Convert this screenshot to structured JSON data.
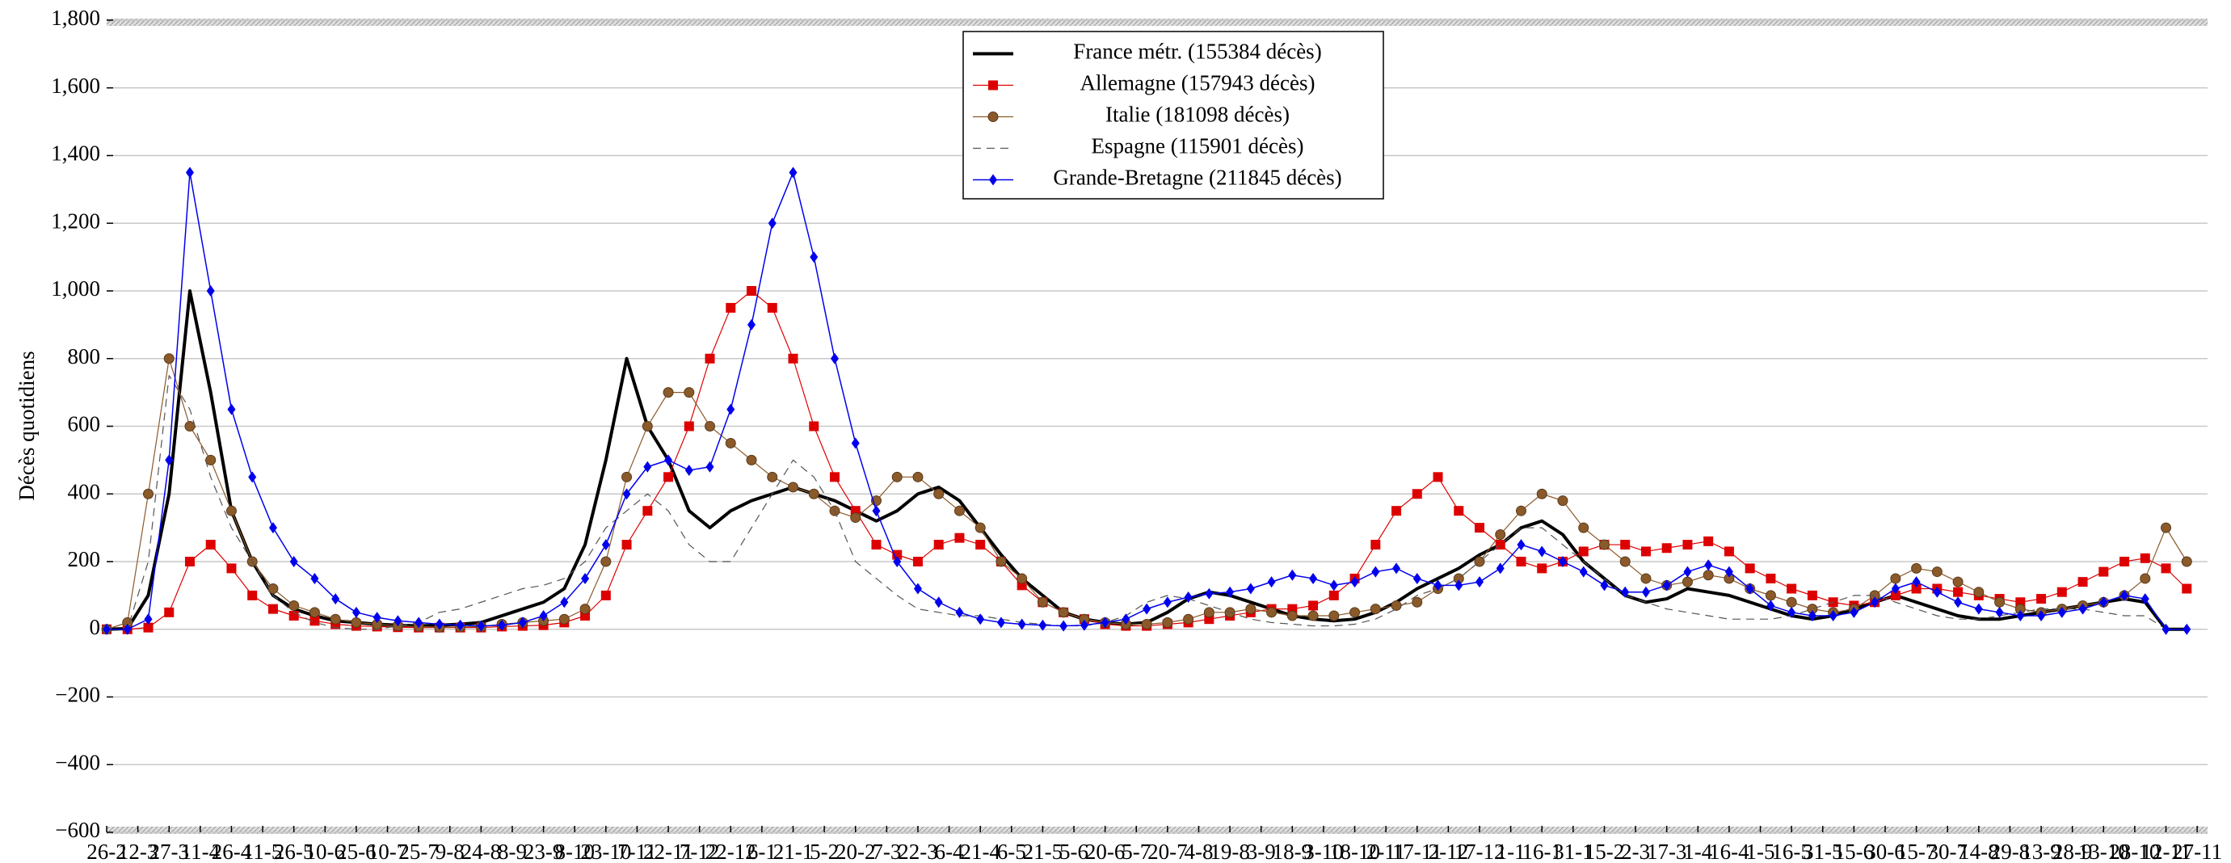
{
  "chart_data": {
    "type": "line",
    "ylabel": "Décès quotidiens",
    "x": [
      0,
      10,
      20,
      30,
      40,
      50,
      60,
      70,
      80,
      90,
      100,
      110,
      120,
      130,
      140,
      150,
      160,
      170,
      180,
      190,
      200,
      210,
      220,
      230,
      240,
      250,
      260,
      270,
      280,
      290,
      300,
      310,
      320,
      330,
      340,
      350,
      360,
      370,
      380,
      390,
      400,
      410,
      420,
      430,
      440,
      450,
      460,
      470,
      480,
      490,
      500,
      510,
      520,
      530,
      540,
      550,
      560,
      570,
      580,
      590,
      600,
      610,
      620,
      630,
      640,
      650,
      660,
      670,
      680,
      690,
      700,
      710,
      720,
      730,
      740,
      750,
      760,
      770,
      780,
      790,
      800,
      810,
      820,
      830,
      840,
      850,
      860,
      870,
      880,
      890,
      900,
      910,
      920,
      930,
      940,
      950,
      960,
      970,
      980,
      990,
      1000
    ],
    "xlim": [
      0,
      1010
    ],
    "xticks": [
      {
        "value": 0,
        "label": "26-2"
      },
      {
        "value": 15,
        "label": "12-3"
      },
      {
        "value": 30,
        "label": "27-3"
      },
      {
        "value": 45,
        "label": "11-4"
      },
      {
        "value": 60,
        "label": "26-4"
      },
      {
        "value": 75,
        "label": "11-5"
      },
      {
        "value": 90,
        "label": "26-5"
      },
      {
        "value": 105,
        "label": "10-6"
      },
      {
        "value": 120,
        "label": "25-6"
      },
      {
        "value": 135,
        "label": "10-7"
      },
      {
        "value": 150,
        "label": "25-7"
      },
      {
        "value": 165,
        "label": "9-8"
      },
      {
        "value": 180,
        "label": "24-8"
      },
      {
        "value": 195,
        "label": "8-9"
      },
      {
        "value": 210,
        "label": "23-9"
      },
      {
        "value": 225,
        "label": "8-10"
      },
      {
        "value": 240,
        "label": "23-10"
      },
      {
        "value": 255,
        "label": "7-11"
      },
      {
        "value": 270,
        "label": "22-11"
      },
      {
        "value": 285,
        "label": "7-12"
      },
      {
        "value": 300,
        "label": "22-12"
      },
      {
        "value": 315,
        "label": "6-1"
      },
      {
        "value": 330,
        "label": "21-1"
      },
      {
        "value": 345,
        "label": "5-2"
      },
      {
        "value": 360,
        "label": "20-2"
      },
      {
        "value": 375,
        "label": "7-3"
      },
      {
        "value": 390,
        "label": "22-3"
      },
      {
        "value": 405,
        "label": "6-4"
      },
      {
        "value": 420,
        "label": "21-4"
      },
      {
        "value": 435,
        "label": "6-5"
      },
      {
        "value": 450,
        "label": "21-5"
      },
      {
        "value": 465,
        "label": "5-6"
      },
      {
        "value": 480,
        "label": "20-6"
      },
      {
        "value": 495,
        "label": "5-7"
      },
      {
        "value": 510,
        "label": "20-7"
      },
      {
        "value": 525,
        "label": "4-8"
      },
      {
        "value": 540,
        "label": "19-8"
      },
      {
        "value": 555,
        "label": "3-9"
      },
      {
        "value": 570,
        "label": "18-9"
      },
      {
        "value": 585,
        "label": "3-10"
      },
      {
        "value": 600,
        "label": "18-10"
      },
      {
        "value": 615,
        "label": "2-11"
      },
      {
        "value": 630,
        "label": "17-11"
      },
      {
        "value": 645,
        "label": "2-12"
      },
      {
        "value": 660,
        "label": "17-12"
      },
      {
        "value": 675,
        "label": "1-1"
      },
      {
        "value": 690,
        "label": "16-1"
      },
      {
        "value": 705,
        "label": "31-1"
      },
      {
        "value": 720,
        "label": "15-2"
      },
      {
        "value": 735,
        "label": "2-3"
      },
      {
        "value": 750,
        "label": "17-3"
      },
      {
        "value": 765,
        "label": "1-4"
      },
      {
        "value": 780,
        "label": "16-4"
      },
      {
        "value": 795,
        "label": "1-5"
      },
      {
        "value": 810,
        "label": "16-5"
      },
      {
        "value": 825,
        "label": "31-5"
      },
      {
        "value": 840,
        "label": "15-6"
      },
      {
        "value": 855,
        "label": "30-6"
      },
      {
        "value": 870,
        "label": "15-7"
      },
      {
        "value": 885,
        "label": "30-7"
      },
      {
        "value": 900,
        "label": "14-8"
      },
      {
        "value": 915,
        "label": "29-8"
      },
      {
        "value": 930,
        "label": "13-9"
      },
      {
        "value": 945,
        "label": "28-9"
      },
      {
        "value": 960,
        "label": "13-10"
      },
      {
        "value": 975,
        "label": "28-10"
      },
      {
        "value": 990,
        "label": "12-11"
      },
      {
        "value": 1005,
        "label": "27-11"
      }
    ],
    "ylim": [
      -600,
      1800
    ],
    "yticks": [
      {
        "value": -600,
        "label": "−600"
      },
      {
        "value": -400,
        "label": "−400"
      },
      {
        "value": -200,
        "label": "−200"
      },
      0,
      200,
      400,
      600,
      800,
      {
        "value": 1000,
        "label": "1,000"
      },
      {
        "value": 1200,
        "label": "1,200"
      },
      {
        "value": 1400,
        "label": "1,400"
      },
      {
        "value": 1600,
        "label": "1,600"
      },
      {
        "value": 1800,
        "label": "1,800"
      }
    ],
    "grid": true,
    "legend": "top-center",
    "series": [
      {
        "name": "France métr. (155384 décès)",
        "color": "#000000",
        "line_width": 4,
        "dashed": false,
        "marker": null,
        "values": [
          0,
          2,
          100,
          400,
          1000,
          700,
          350,
          200,
          100,
          60,
          40,
          25,
          20,
          15,
          12,
          10,
          12,
          15,
          20,
          40,
          60,
          80,
          120,
          250,
          500,
          800,
          600,
          500,
          350,
          300,
          350,
          380,
          400,
          420,
          400,
          380,
          350,
          320,
          350,
          400,
          420,
          380,
          300,
          220,
          150,
          100,
          50,
          30,
          20,
          15,
          20,
          50,
          90,
          110,
          100,
          80,
          60,
          40,
          30,
          25,
          30,
          50,
          80,
          120,
          150,
          180,
          220,
          250,
          300,
          320,
          280,
          200,
          150,
          100,
          80,
          90,
          120,
          110,
          100,
          80,
          60,
          40,
          30,
          40,
          60,
          80,
          100,
          80,
          60,
          40,
          30,
          30,
          40,
          50,
          60,
          70,
          80,
          90,
          80,
          0,
          0
        ]
      },
      {
        "name": "Allemagne (157943 décès)",
        "color": "#dd0000",
        "line_width": 1.2,
        "dashed": false,
        "marker": "square",
        "values": [
          0,
          0,
          5,
          50,
          200,
          250,
          180,
          100,
          60,
          40,
          25,
          15,
          10,
          8,
          6,
          5,
          5,
          5,
          5,
          8,
          10,
          12,
          20,
          40,
          100,
          250,
          350,
          450,
          600,
          800,
          950,
          1000,
          950,
          800,
          600,
          450,
          350,
          250,
          220,
          200,
          250,
          270,
          250,
          200,
          130,
          80,
          50,
          30,
          15,
          10,
          10,
          15,
          20,
          30,
          40,
          50,
          60,
          60,
          70,
          100,
          150,
          250,
          350,
          400,
          450,
          350,
          300,
          250,
          200,
          180,
          200,
          230,
          250,
          250,
          230,
          240,
          250,
          260,
          230,
          180,
          150,
          120,
          100,
          80,
          70,
          80,
          100,
          120,
          120,
          110,
          100,
          90,
          80,
          90,
          110,
          140,
          170,
          200,
          210,
          180,
          120
        ]
      },
      {
        "name": "Italie (181098 décès)",
        "color": "#8b5a2b",
        "line_width": 1.2,
        "dashed": false,
        "marker": "circle",
        "values": [
          0,
          20,
          400,
          800,
          600,
          500,
          350,
          200,
          120,
          70,
          50,
          30,
          20,
          15,
          10,
          8,
          6,
          7,
          8,
          15,
          20,
          25,
          30,
          60,
          200,
          450,
          600,
          700,
          700,
          600,
          550,
          500,
          450,
          420,
          400,
          350,
          330,
          380,
          450,
          450,
          400,
          350,
          300,
          200,
          150,
          80,
          50,
          30,
          20,
          15,
          15,
          20,
          30,
          50,
          50,
          60,
          50,
          40,
          40,
          40,
          50,
          60,
          70,
          80,
          120,
          150,
          200,
          280,
          350,
          400,
          380,
          300,
          250,
          200,
          150,
          130,
          140,
          160,
          150,
          120,
          100,
          80,
          60,
          50,
          60,
          100,
          150,
          180,
          170,
          140,
          110,
          80,
          60,
          50,
          60,
          70,
          80,
          100,
          150,
          300,
          200
        ]
      },
      {
        "name": "Espagne (115901 décès)",
        "color": "#555555",
        "line_width": 1.2,
        "dashed": true,
        "marker": null,
        "values": [
          0,
          0,
          200,
          750,
          650,
          450,
          300,
          200,
          100,
          50,
          20,
          5,
          0,
          0,
          10,
          20,
          50,
          60,
          80,
          100,
          120,
          130,
          150,
          200,
          300,
          350,
          400,
          350,
          250,
          200,
          200,
          300,
          400,
          500,
          450,
          350,
          200,
          150,
          100,
          60,
          50,
          40,
          40,
          30,
          20,
          15,
          10,
          10,
          20,
          40,
          80,
          100,
          90,
          70,
          50,
          30,
          20,
          15,
          10,
          10,
          15,
          30,
          60,
          100,
          120,
          150,
          200,
          250,
          300,
          300,
          250,
          200,
          150,
          100,
          80,
          60,
          50,
          40,
          30,
          30,
          30,
          40,
          60,
          80,
          100,
          100,
          80,
          60,
          40,
          30,
          30,
          40,
          50,
          60,
          60,
          60,
          50,
          40,
          40,
          0,
          0
        ]
      },
      {
        "name": "Grande-Bretagne (211845 décès)",
        "color": "#0000ee",
        "line_width": 1.5,
        "dashed": false,
        "marker": "diamond",
        "values": [
          0,
          0,
          30,
          500,
          1350,
          1000,
          650,
          450,
          300,
          200,
          150,
          90,
          50,
          35,
          25,
          20,
          15,
          12,
          10,
          12,
          20,
          40,
          80,
          150,
          250,
          400,
          480,
          500,
          470,
          480,
          650,
          900,
          1200,
          1350,
          1100,
          800,
          550,
          350,
          200,
          120,
          80,
          50,
          30,
          20,
          15,
          12,
          10,
          12,
          20,
          30,
          60,
          80,
          95,
          105,
          110,
          120,
          140,
          160,
          150,
          130,
          140,
          170,
          180,
          150,
          130,
          130,
          140,
          180,
          250,
          230,
          200,
          170,
          130,
          110,
          110,
          130,
          170,
          190,
          170,
          120,
          70,
          50,
          40,
          40,
          50,
          80,
          120,
          140,
          110,
          80,
          60,
          50,
          40,
          40,
          50,
          60,
          80,
          100,
          90,
          0,
          0
        ]
      }
    ]
  }
}
